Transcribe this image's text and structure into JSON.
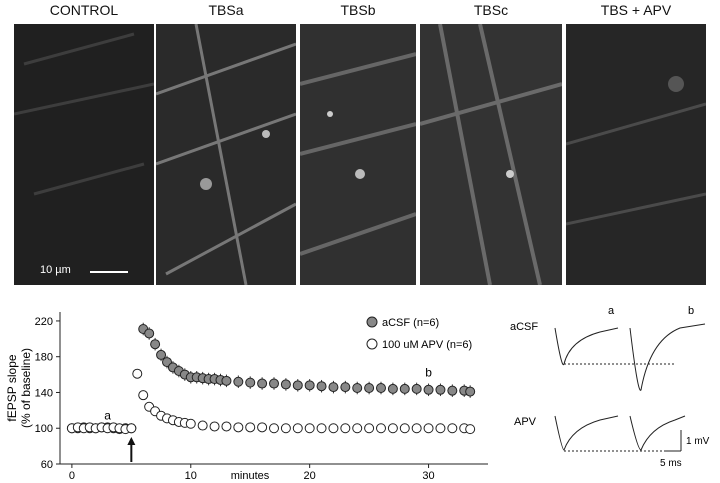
{
  "panels": [
    {
      "label": "CONTROL"
    },
    {
      "label": "TBSa"
    },
    {
      "label": "TBSb"
    },
    {
      "label": "TBSc"
    },
    {
      "label": "TBS + APV"
    }
  ],
  "scalebar_label": "10 µm",
  "chart_data": {
    "type": "scatter",
    "xlabel": "minutes",
    "ylabel": "fEPSP slope",
    "ylabel2": "(% of baseline)",
    "xlim": [
      -1,
      35
    ],
    "ylim": [
      60,
      230
    ],
    "xticks": [
      0,
      10,
      20,
      30
    ],
    "yticks": [
      60,
      100,
      140,
      180,
      220
    ],
    "annotations": [
      {
        "text": "a",
        "x": 3,
        "y": 110
      },
      {
        "text": "b",
        "x": 30,
        "y": 158
      }
    ],
    "series": [
      {
        "name": "aCSF (n=6)",
        "marker": "filled-gray",
        "x": [
          0,
          0.5,
          1,
          1.5,
          2,
          2.5,
          3,
          3.5,
          4,
          4.5,
          5,
          6,
          6.5,
          7,
          7.5,
          8,
          8.5,
          9,
          9.5,
          10,
          10.5,
          11,
          11.5,
          12,
          12.5,
          13,
          14,
          15,
          16,
          17,
          18,
          19,
          20,
          21,
          22,
          23,
          24,
          25,
          26,
          27,
          28,
          29,
          30,
          31,
          32,
          33,
          33.5
        ],
        "y": [
          100,
          100,
          101,
          100,
          100,
          101,
          101,
          100,
          99,
          100,
          100,
          211,
          206,
          194,
          182,
          174,
          168,
          164,
          160,
          157,
          157,
          156,
          155,
          155,
          154,
          153,
          152,
          151,
          150,
          150,
          149,
          148,
          148,
          147,
          146,
          146,
          145,
          145,
          145,
          144,
          144,
          144,
          143,
          143,
          142,
          142,
          141
        ]
      },
      {
        "name": "100 uM APV (n=6)",
        "marker": "open",
        "x": [
          0,
          0.5,
          1,
          1.5,
          2,
          2.5,
          3,
          3.5,
          4,
          4.5,
          5,
          5.5,
          6,
          6.5,
          7,
          7.5,
          8,
          8.5,
          9,
          9.5,
          10,
          11,
          12,
          13,
          14,
          15,
          16,
          17,
          18,
          19,
          20,
          21,
          22,
          23,
          24,
          25,
          26,
          27,
          28,
          29,
          30,
          31,
          32,
          33,
          33.5
        ],
        "y": [
          100,
          101,
          100,
          101,
          100,
          101,
          100,
          101,
          100,
          99,
          100,
          161,
          137,
          124,
          119,
          114,
          111,
          109,
          107,
          106,
          105,
          103,
          102,
          102,
          101,
          101,
          101,
          100,
          100,
          100,
          100,
          100,
          100,
          100,
          100,
          100,
          100,
          100,
          100,
          100,
          100,
          100,
          100,
          100,
          99
        ]
      }
    ],
    "arrow_at_x": 5
  },
  "traces": {
    "row_labels": [
      "aCSF",
      "APV"
    ],
    "col_labels": [
      "a",
      "b"
    ],
    "scale_voltage": "1 mV",
    "scale_time": "5 ms"
  }
}
